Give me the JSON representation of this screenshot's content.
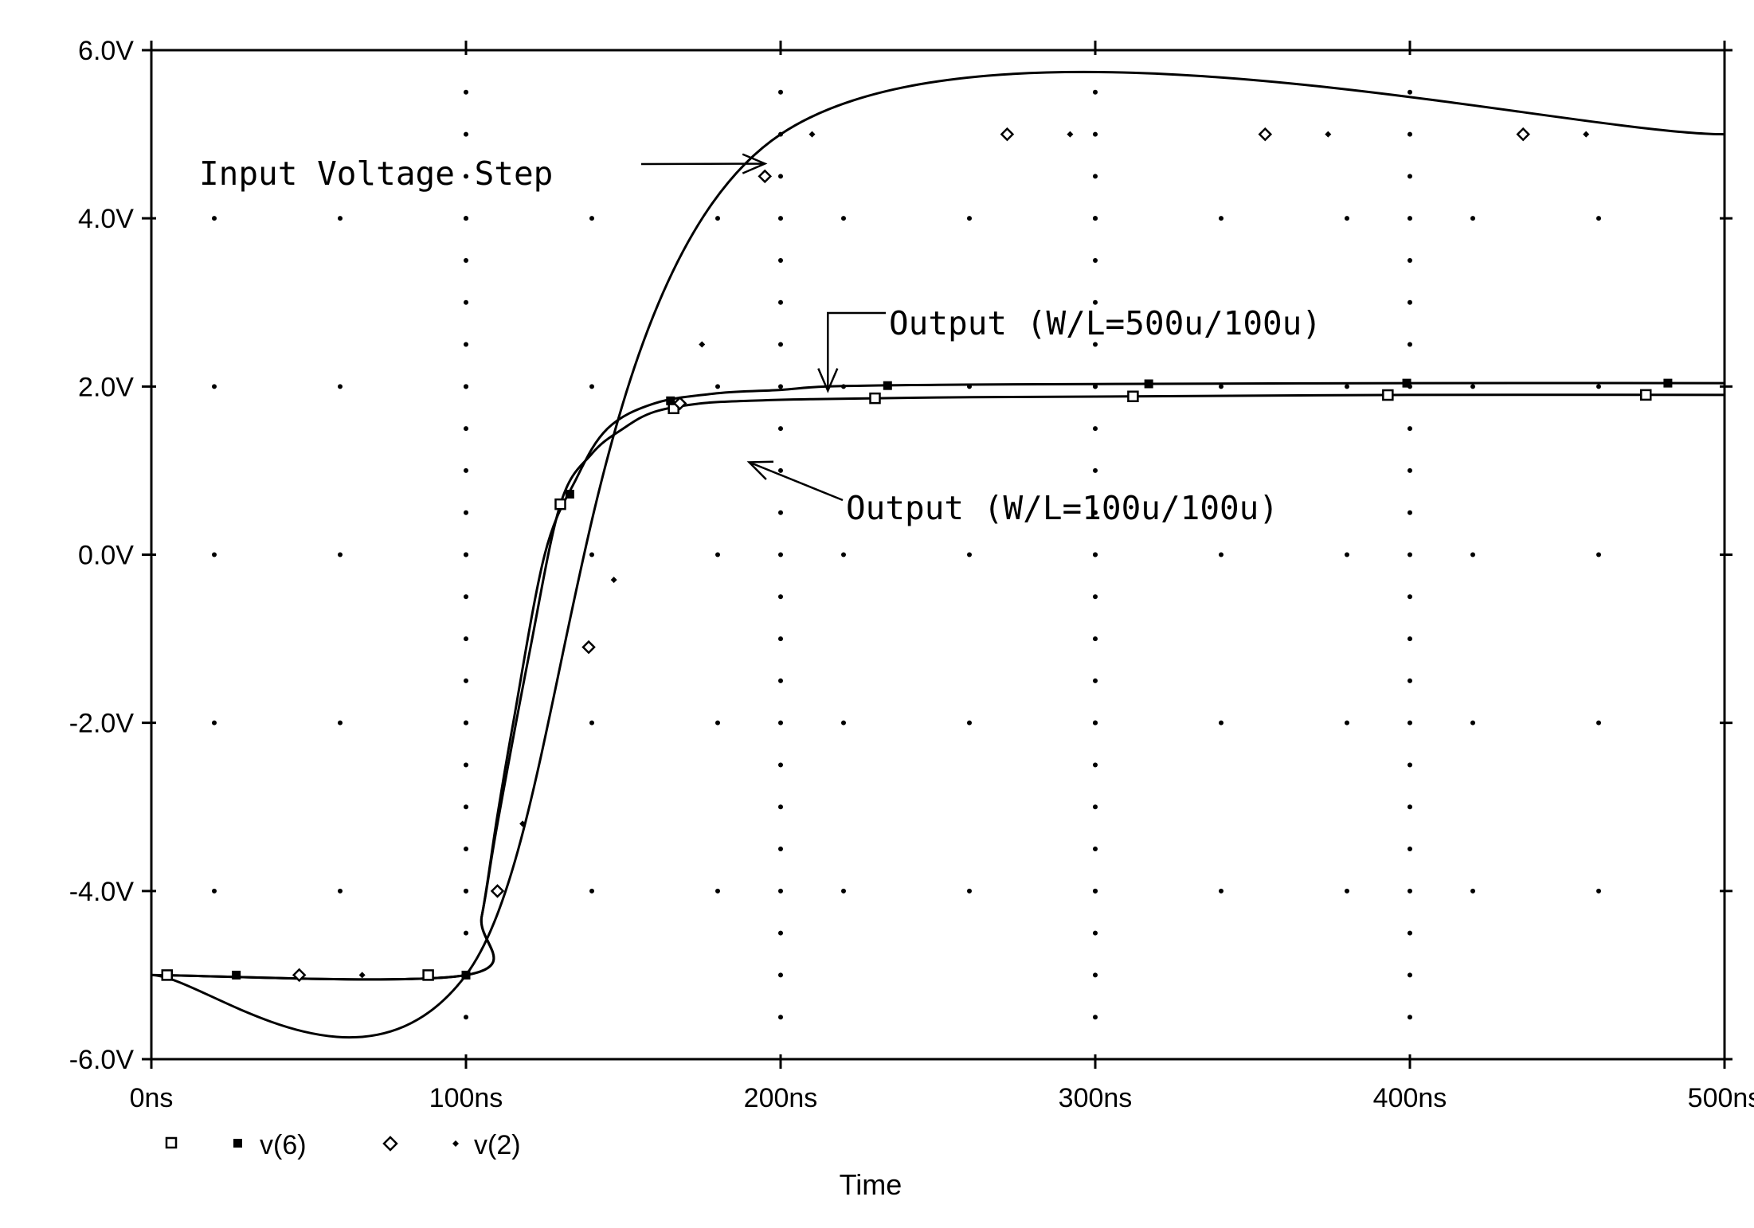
{
  "chart_data": {
    "type": "line",
    "xlabel": "Time",
    "ylabel": "",
    "xlim": [
      0,
      500
    ],
    "ylim": [
      -6,
      6
    ],
    "x_ticks": [
      0,
      100,
      200,
      300,
      400,
      500
    ],
    "x_tick_labels": [
      "0ns",
      "100ns",
      "200ns",
      "300ns",
      "400ns",
      "500ns"
    ],
    "y_ticks": [
      6,
      4,
      2,
      0,
      -2,
      -4,
      -6
    ],
    "y_tick_labels": [
      "6.0V",
      "4.0V",
      "2.0V",
      "0.0V",
      "-2.0V",
      "-4.0V",
      "-6.0V"
    ],
    "grid": "dotted",
    "series": [
      {
        "name": "v(6)",
        "description_marker": "open-square",
        "points": [
          [
            0,
            -5
          ],
          [
            100,
            -5
          ],
          [
            105,
            -4.3
          ],
          [
            110,
            -3.2
          ],
          [
            120,
            -1.2
          ],
          [
            130,
            0.6
          ],
          [
            140,
            1.2
          ],
          [
            150,
            1.5
          ],
          [
            160,
            1.7
          ],
          [
            175,
            1.8
          ],
          [
            190,
            1.83
          ],
          [
            210,
            1.85
          ],
          [
            250,
            1.87
          ],
          [
            300,
            1.88
          ],
          [
            400,
            1.9
          ],
          [
            500,
            1.9
          ]
        ]
      },
      {
        "name": "v(6)",
        "description_marker": "filled-square",
        "points": [
          [
            0,
            -5
          ],
          [
            100,
            -5
          ],
          [
            105,
            -4.3
          ],
          [
            110,
            -3.1
          ],
          [
            115,
            -2.0
          ],
          [
            125,
            0
          ],
          [
            135,
            0.9
          ],
          [
            145,
            1.5
          ],
          [
            160,
            1.8
          ],
          [
            180,
            1.92
          ],
          [
            200,
            1.96
          ],
          [
            215,
            2.0
          ],
          [
            250,
            2.02
          ],
          [
            300,
            2.03
          ],
          [
            400,
            2.04
          ],
          [
            500,
            2.04
          ]
        ]
      },
      {
        "name": "v(2)",
        "description_marker": "open-diamond",
        "points": [
          [
            0,
            -5
          ],
          [
            100,
            -5
          ],
          [
            200,
            5
          ],
          [
            500,
            5
          ]
        ]
      },
      {
        "name": "v(2)",
        "description_marker": "small-dot",
        "points": [
          [
            0,
            -5
          ],
          [
            100,
            -5
          ],
          [
            200,
            5
          ],
          [
            500,
            5
          ]
        ]
      }
    ],
    "legend": {
      "placement": "bottom-left",
      "entries": [
        {
          "marker": "open-square",
          "label": ""
        },
        {
          "marker": "filled-square",
          "label": "v(6)"
        },
        {
          "marker": "open-diamond",
          "label": ""
        },
        {
          "marker": "small-dot",
          "label": "v(2)"
        }
      ]
    },
    "annotations": [
      {
        "text": "Input Voltage Step",
        "target": [
          195,
          4.65
        ]
      },
      {
        "text": "Output (W/L=500u/100u)",
        "target": [
          215,
          1.95
        ]
      },
      {
        "text": "Output (W/L=100u/100u)",
        "target": [
          190,
          1.1
        ]
      }
    ]
  }
}
